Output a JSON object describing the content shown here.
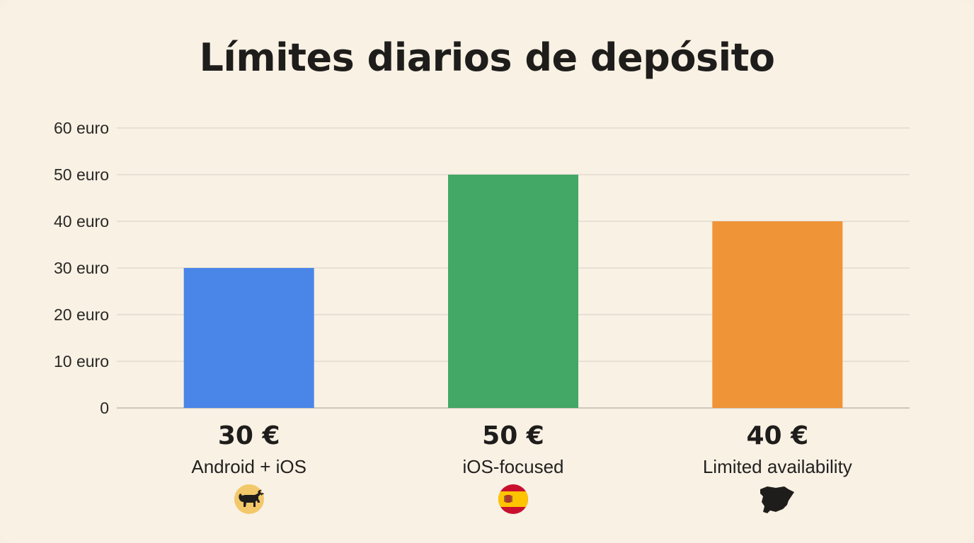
{
  "chart_data": {
    "type": "bar",
    "title": "Límites diarios de depósito",
    "xlabel": "",
    "ylabel": "",
    "ylim": [
      0,
      60
    ],
    "yticks": [
      {
        "value": 0,
        "label": "0"
      },
      {
        "value": 10,
        "label": "10 euro"
      },
      {
        "value": 20,
        "label": "20 euro"
      },
      {
        "value": 30,
        "label": "30 euro"
      },
      {
        "value": 40,
        "label": "40 euro"
      },
      {
        "value": 50,
        "label": "50 euro"
      },
      {
        "value": 60,
        "label": "60 euro"
      }
    ],
    "grid": true,
    "categories": [
      {
        "value": 30,
        "value_label": "30 €",
        "note": "Android + iOS",
        "color": "#4a86e8",
        "icon": "bull-icon"
      },
      {
        "value": 50,
        "value_label": "50 €",
        "note": "iOS-focused",
        "color": "#43a765",
        "icon": "spain-flag-icon"
      },
      {
        "value": 40,
        "value_label": "40 €",
        "note": "Limited availability",
        "color": "#ef9437",
        "icon": "spain-map-icon"
      }
    ]
  }
}
